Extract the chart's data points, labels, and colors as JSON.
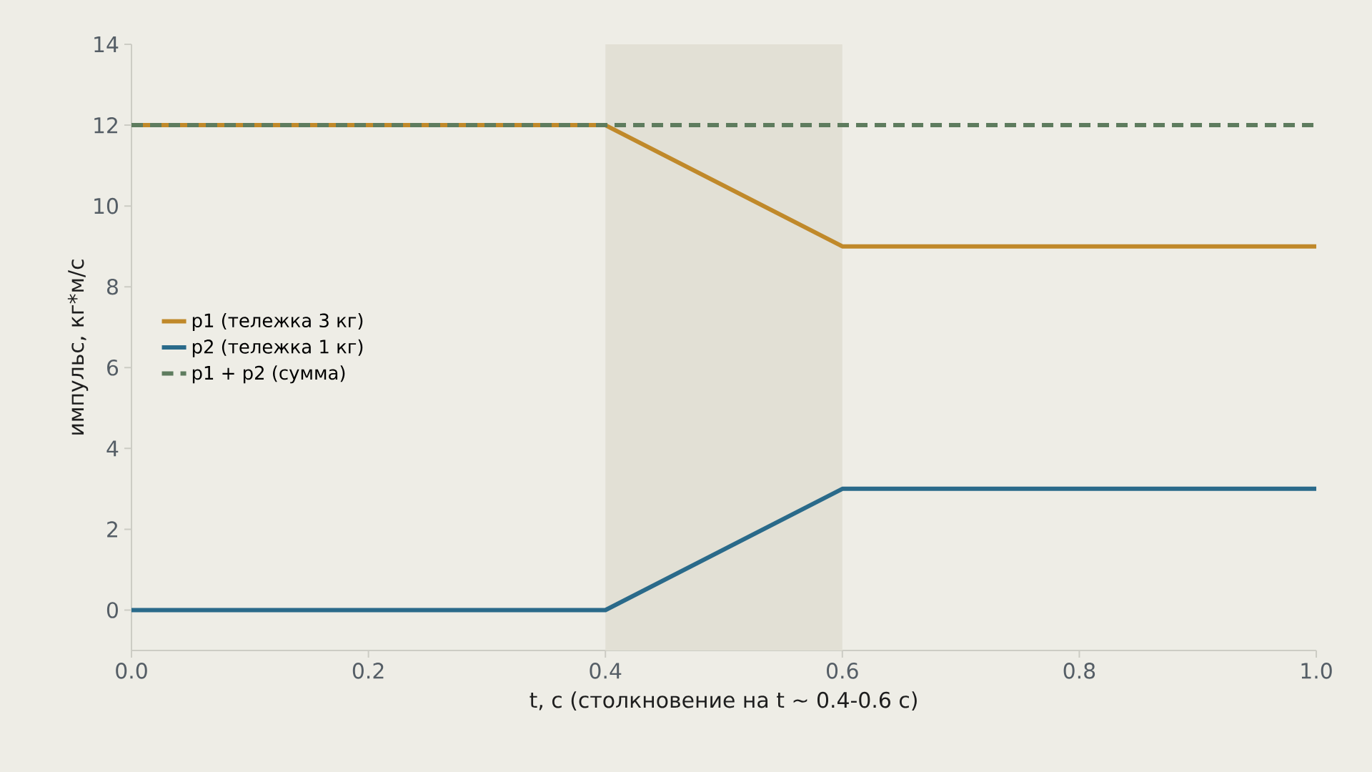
{
  "chart_data": {
    "type": "line",
    "xlabel": "t, с (столкновение на t ~ 0.4-0.6 с)",
    "ylabel": "импульс, кг*м/с",
    "x": [
      0,
      0.4,
      0.6,
      1
    ],
    "series": [
      {
        "name": "p1 (тележка 3 кг)",
        "color": "#c0892a",
        "values": [
          12,
          12,
          9,
          9
        ],
        "line_style": "solid"
      },
      {
        "name": "p2 (тележка 1 кг)",
        "color": "#2a6a8a",
        "values": [
          0,
          0,
          3,
          3
        ],
        "line_style": "solid"
      },
      {
        "name": "p1 + p2 (сумма)",
        "color": "#5e7c5e",
        "values": [
          12,
          12,
          12,
          12
        ],
        "line_style": "dashed"
      }
    ],
    "xlim": [
      0,
      1
    ],
    "ylim": [
      -1,
      14
    ],
    "xticks": [
      {
        "value": 0,
        "label": "0.0"
      },
      {
        "value": 0.2,
        "label": "0.2"
      },
      {
        "value": 0.4,
        "label": "0.4"
      },
      {
        "value": 0.6,
        "label": "0.6"
      },
      {
        "value": 0.8,
        "label": "0.8"
      },
      {
        "value": 1,
        "label": "1.0"
      }
    ],
    "yticks": [
      0,
      2,
      4,
      6,
      8,
      10,
      12,
      14
    ],
    "bands": [
      {
        "axis": "x",
        "from": 0.4,
        "to": 0.6,
        "color": "#e2e0d5"
      }
    ],
    "grid": false,
    "legend": "left",
    "marker": "none"
  }
}
